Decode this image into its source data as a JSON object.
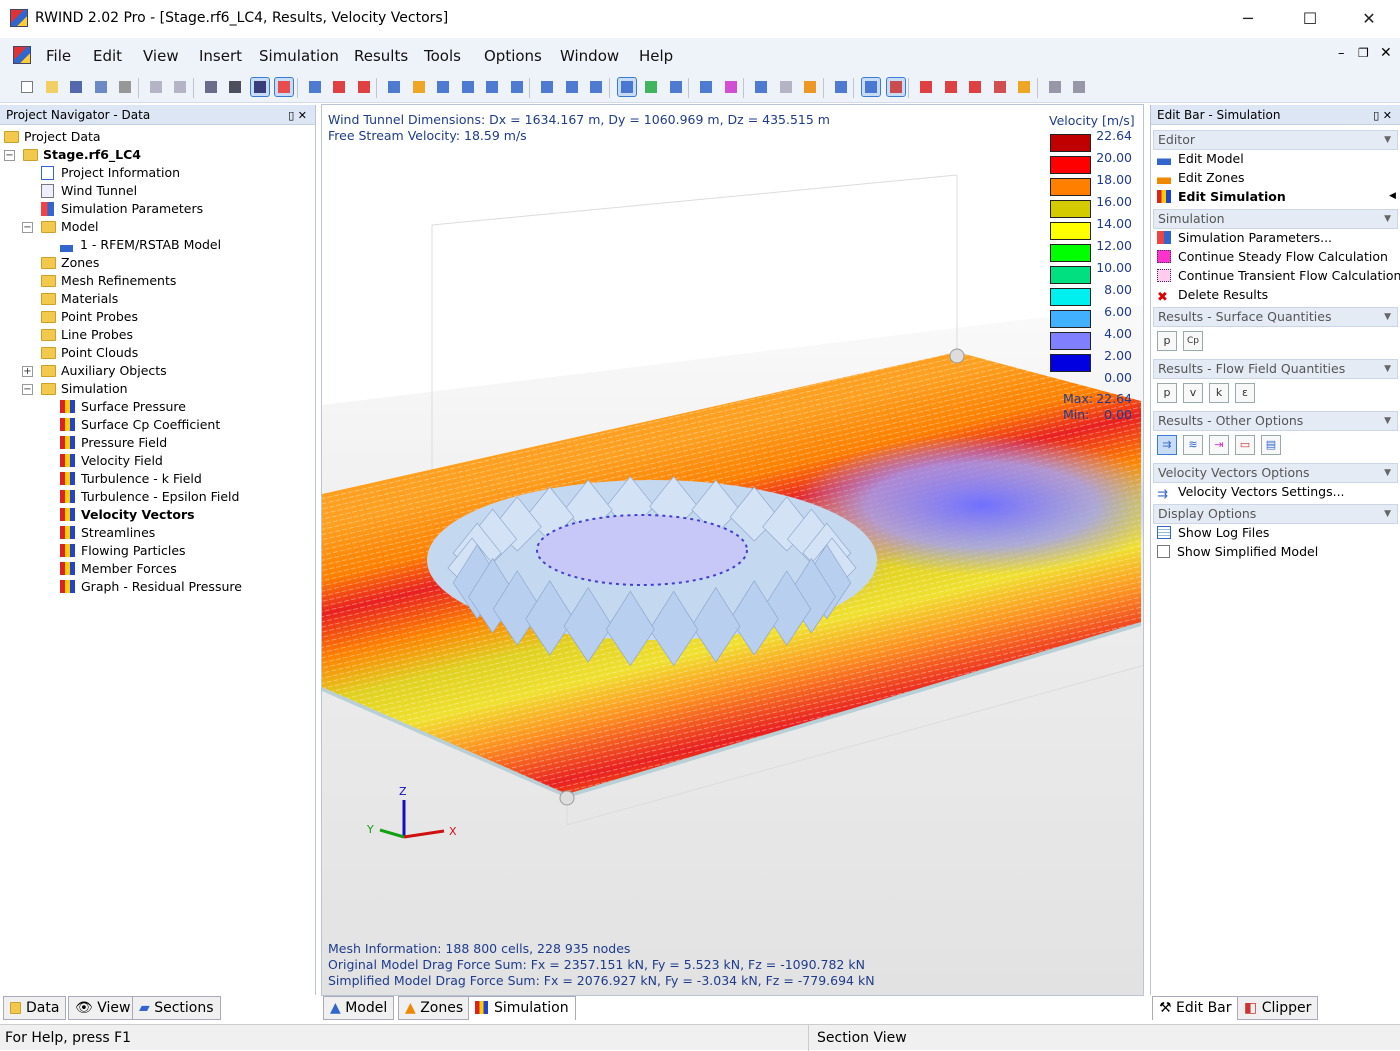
{
  "window": {
    "title": "RWIND 2.02 Pro - [Stage.rf6_LC4, Results, Velocity Vectors]",
    "minimize": "─",
    "maximize": "☐",
    "close": "✕"
  },
  "menu": [
    "File",
    "Edit",
    "View",
    "Insert",
    "Simulation",
    "Results",
    "Tools",
    "Options",
    "Window",
    "Help"
  ],
  "navigator": {
    "title": "Project Navigator - Data",
    "items": [
      {
        "label": "Project Data",
        "level": 0,
        "icon": "folder-icon"
      },
      {
        "label": "Stage.rf6_LC4",
        "level": 1,
        "icon": "folder-icon",
        "bold": true,
        "expander": "−"
      },
      {
        "label": "Project Information",
        "level": 2,
        "icon": "document-icon"
      },
      {
        "label": "Wind Tunnel",
        "level": 2,
        "icon": "wind-tunnel-icon"
      },
      {
        "label": "Simulation Parameters",
        "level": 2,
        "icon": "parameters-icon"
      },
      {
        "label": "Model",
        "level": 2,
        "icon": "folder-icon",
        "expander": "−"
      },
      {
        "label": "1 - RFEM/RSTAB Model",
        "level": 3,
        "icon": "model-icon"
      },
      {
        "label": "Zones",
        "level": 2,
        "icon": "folder-icon"
      },
      {
        "label": "Mesh Refinements",
        "level": 2,
        "icon": "folder-icon"
      },
      {
        "label": "Materials",
        "level": 2,
        "icon": "folder-icon"
      },
      {
        "label": "Point Probes",
        "level": 2,
        "icon": "folder-icon"
      },
      {
        "label": "Line Probes",
        "level": 2,
        "icon": "folder-icon"
      },
      {
        "label": "Point Clouds",
        "level": 2,
        "icon": "folder-icon"
      },
      {
        "label": "Auxiliary Objects",
        "level": 2,
        "icon": "folder-icon",
        "expander": "+"
      },
      {
        "label": "Simulation",
        "level": 2,
        "icon": "folder-icon",
        "expander": "−"
      },
      {
        "label": "Surface Pressure",
        "level": 3,
        "icon": "result-icon"
      },
      {
        "label": "Surface Cp Coefficient",
        "level": 3,
        "icon": "result-icon"
      },
      {
        "label": "Pressure Field",
        "level": 3,
        "icon": "result-icon"
      },
      {
        "label": "Velocity Field",
        "level": 3,
        "icon": "result-icon"
      },
      {
        "label": "Turbulence - k Field",
        "level": 3,
        "icon": "result-icon"
      },
      {
        "label": "Turbulence - Epsilon Field",
        "level": 3,
        "icon": "result-icon"
      },
      {
        "label": "Velocity Vectors",
        "level": 3,
        "icon": "result-icon",
        "bold": true
      },
      {
        "label": "Streamlines",
        "level": 3,
        "icon": "result-icon"
      },
      {
        "label": "Flowing Particles",
        "level": 3,
        "icon": "result-icon"
      },
      {
        "label": "Member Forces",
        "level": 3,
        "icon": "result-icon"
      },
      {
        "label": "Graph - Residual Pressure",
        "level": 3,
        "icon": "result-icon"
      }
    ],
    "tabs": [
      "Data",
      "View",
      "Sections"
    ]
  },
  "viewport": {
    "info1": "Wind Tunnel Dimensions: Dx = 1634.167 m, Dy = 1060.969 m, Dz = 435.515 m",
    "info2": "Free Stream Velocity: 18.59 m/s",
    "legend": {
      "title": "Velocity [m/s]",
      "values": [
        "22.64",
        "20.00",
        "18.00",
        "16.00",
        "14.00",
        "12.00",
        "10.00",
        "8.00",
        "6.00",
        "4.00",
        "2.00",
        "0.00"
      ],
      "colors": [
        "#c00000",
        "#ff0000",
        "#ff8000",
        "#d4cc00",
        "#ffff00",
        "#00ff00",
        "#00e080",
        "#00f0f0",
        "#40b0ff",
        "#8080ff",
        "#0000e0"
      ],
      "max_label": "Max:",
      "max": "22.64",
      "min_label": "Min:",
      "min": "0.00"
    },
    "axes": {
      "x": "X",
      "y": "Y",
      "z": "Z"
    },
    "mesh_info": "Mesh Information: 188 800 cells, 228 935 nodes",
    "drag_original": "Original Model Drag Force Sum: Fx = 2357.151 kN, Fy = 5.523 kN, Fz = -1090.782 kN",
    "drag_simplified": "Simplified Model Drag Force Sum: Fx = 2076.927 kN, Fy = -3.034 kN, Fz = -779.694 kN",
    "tabs": [
      "Model",
      "Zones",
      "Simulation"
    ]
  },
  "editbar": {
    "title": "Edit Bar - Simulation",
    "sections": {
      "editor": {
        "title": "Editor",
        "items": [
          "Edit Model",
          "Edit Zones",
          "Edit Simulation"
        ]
      },
      "simulation": {
        "title": "Simulation",
        "items": [
          "Simulation Parameters...",
          "Continue Steady Flow Calculation",
          "Continue Transient Flow Calculation",
          "Delete Results"
        ]
      },
      "surface": {
        "title": "Results - Surface Quantities",
        "buttons": [
          "p",
          "Cp"
        ]
      },
      "flow": {
        "title": "Results - Flow Field Quantities",
        "buttons": [
          "p",
          "v",
          "k",
          "ε"
        ]
      },
      "other": {
        "title": "Results - Other Options"
      },
      "vv": {
        "title": "Velocity Vectors Options",
        "items": [
          "Velocity Vectors Settings..."
        ]
      },
      "display": {
        "title": "Display Options",
        "items": [
          "Show Log Files",
          "Show Simplified Model"
        ]
      }
    },
    "tabs": [
      "Edit Bar",
      "Clipper"
    ]
  },
  "status": {
    "help": "For Help, press F1",
    "section": "Section View"
  }
}
